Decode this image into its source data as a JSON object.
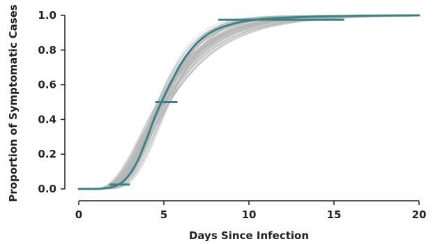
{
  "chart_data": {
    "type": "line",
    "title": "",
    "xlabel": "Days Since Infection",
    "ylabel": "Proportion of Symptomatic Cases",
    "xlim": [
      0,
      20
    ],
    "ylim": [
      0,
      1
    ],
    "x_ticks": [
      0,
      5,
      10,
      15,
      20
    ],
    "y_ticks": [
      0.0,
      0.2,
      0.4,
      0.6,
      0.8,
      1.0
    ],
    "x_tick_labels": [
      "0",
      "5",
      "10",
      "15",
      "20"
    ],
    "y_tick_labels": [
      "0.0",
      "0.2",
      "0.4",
      "0.6",
      "0.8",
      "1.0"
    ],
    "grid": false,
    "main_series": {
      "color": "#3b8288",
      "x": [
        0,
        1,
        1.5,
        2,
        2.5,
        3,
        3.5,
        4,
        4.5,
        5,
        5.5,
        6,
        6.5,
        7,
        7.5,
        8,
        9,
        10,
        11,
        12,
        13,
        14,
        15,
        16,
        18,
        20
      ],
      "y": [
        0.0,
        0.0,
        0.003,
        0.012,
        0.035,
        0.085,
        0.17,
        0.29,
        0.42,
        0.53,
        0.63,
        0.72,
        0.79,
        0.845,
        0.885,
        0.915,
        0.95,
        0.97,
        0.98,
        0.986,
        0.99,
        0.993,
        0.995,
        0.997,
        0.999,
        1.0
      ]
    },
    "bootstrap_curves": {
      "color": "#b5b5b5",
      "count": 80,
      "median_range": [
        4.6,
        5.4
      ],
      "dispersion_range": [
        0.32,
        0.52
      ]
    },
    "intervals": [
      {
        "y": 0.025,
        "x_low": 1.8,
        "x_high": 3.0
      },
      {
        "y": 0.5,
        "x_low": 4.5,
        "x_high": 5.8
      },
      {
        "y": 0.975,
        "x_low": 8.2,
        "x_high": 15.6
      }
    ]
  }
}
